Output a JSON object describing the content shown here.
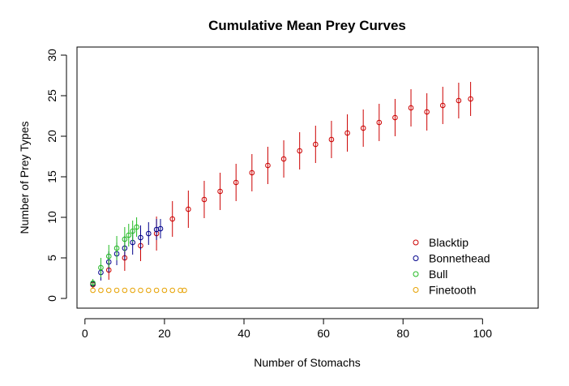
{
  "chart_data": {
    "type": "scatter",
    "title": "Cumulative Mean Prey Curves",
    "xlabel": "Number of Stomachs",
    "ylabel": "Number of Prey Types",
    "xlim": [
      -2,
      114
    ],
    "ylim": [
      -1.2,
      31
    ],
    "x_ticks": [
      0,
      20,
      40,
      60,
      80,
      100
    ],
    "y_ticks": [
      0,
      5,
      10,
      15,
      20,
      25,
      30
    ],
    "grid": false,
    "legend_position": "bottom-right",
    "series": [
      {
        "name": "Blacktip",
        "color": "#cc0000",
        "x": [
          2,
          6,
          10,
          14,
          18,
          22,
          26,
          30,
          34,
          38,
          42,
          46,
          50,
          54,
          58,
          62,
          66,
          70,
          74,
          78,
          82,
          86,
          90,
          94,
          97
        ],
        "y": [
          1.7,
          3.5,
          5.0,
          6.5,
          8.0,
          9.8,
          11.0,
          12.2,
          13.2,
          14.3,
          15.5,
          16.4,
          17.2,
          18.2,
          19.0,
          19.6,
          20.4,
          21.0,
          21.7,
          22.3,
          23.5,
          23.0,
          23.8,
          24.4,
          24.6
        ],
        "error": [
          0.5,
          1.2,
          1.6,
          1.9,
          2.1,
          2.2,
          2.3,
          2.3,
          2.3,
          2.3,
          2.3,
          2.3,
          2.3,
          2.3,
          2.3,
          2.3,
          2.3,
          2.3,
          2.3,
          2.3,
          2.3,
          2.3,
          2.3,
          2.2,
          2.1
        ]
      },
      {
        "name": "Bonnethead",
        "color": "#00008b",
        "x": [
          2,
          4,
          6,
          8,
          10,
          12,
          14,
          16,
          18,
          19
        ],
        "y": [
          1.8,
          3.2,
          4.5,
          5.5,
          6.2,
          6.9,
          7.5,
          8.0,
          8.5,
          8.6
        ],
        "error": [
          0.4,
          1.0,
          1.3,
          1.4,
          1.5,
          1.5,
          1.5,
          1.4,
          1.3,
          1.2
        ]
      },
      {
        "name": "Bull",
        "color": "#22bb22",
        "x": [
          2,
          4,
          6,
          8,
          10,
          11,
          12,
          13
        ],
        "y": [
          1.9,
          3.8,
          5.2,
          6.2,
          7.3,
          7.8,
          8.3,
          8.8
        ],
        "error": [
          0.5,
          1.2,
          1.4,
          1.5,
          1.5,
          1.4,
          1.3,
          1.2
        ]
      },
      {
        "name": "Finetooth",
        "color": "#e6a100",
        "x": [
          2,
          4,
          6,
          8,
          10,
          12,
          14,
          16,
          18,
          20,
          22,
          24,
          25
        ],
        "y": [
          1,
          1,
          1,
          1,
          1,
          1,
          1,
          1,
          1,
          1,
          1,
          1,
          1
        ],
        "error": [
          0,
          0,
          0,
          0,
          0,
          0,
          0,
          0,
          0,
          0,
          0,
          0,
          0
        ]
      }
    ]
  }
}
